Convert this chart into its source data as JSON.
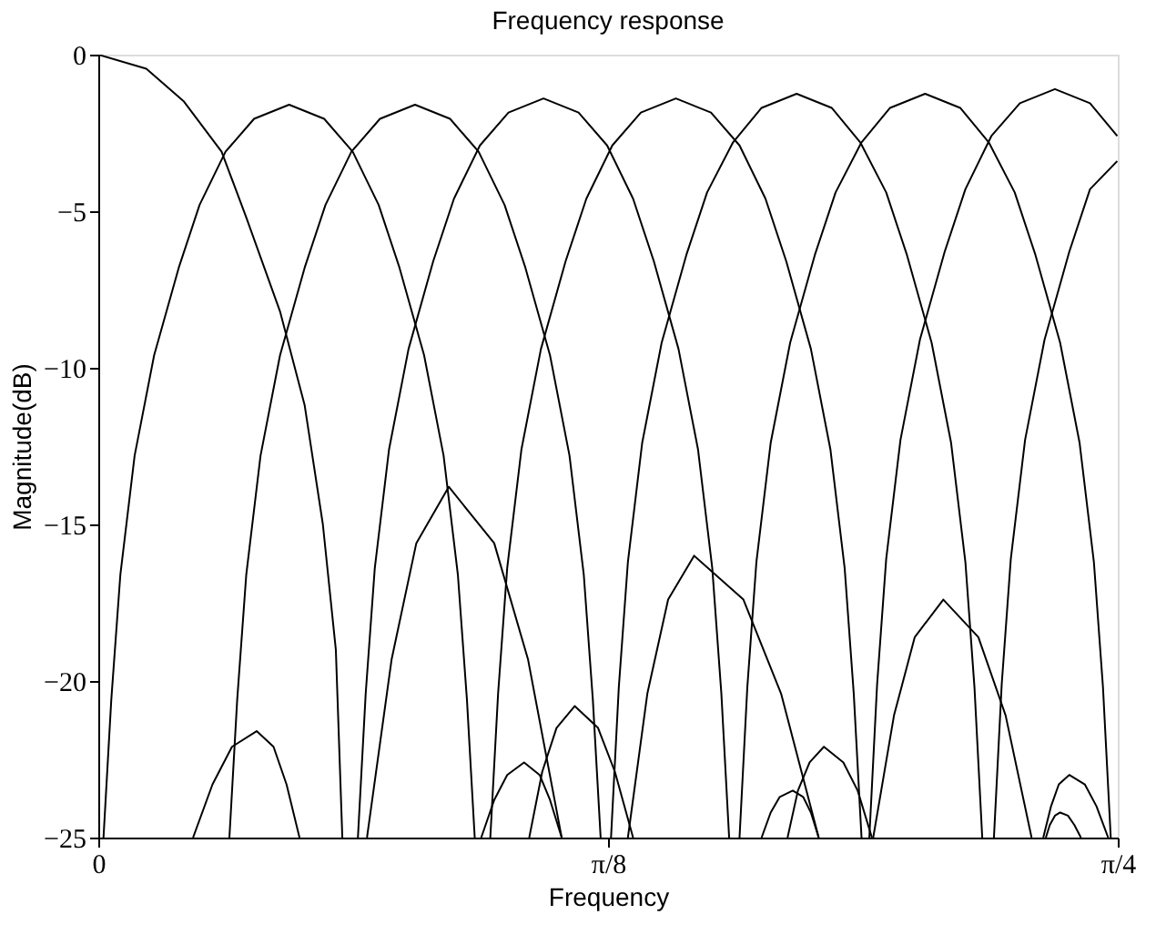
{
  "chart_data": {
    "type": "line",
    "title": "Frequency response",
    "xlabel": "Frequency",
    "ylabel": "Magnitude(dB)",
    "xlim": [
      0,
      0.7854
    ],
    "xticks": [
      {
        "value": 0,
        "label": "0"
      },
      {
        "value": 0.3927,
        "label": "π/8"
      },
      {
        "value": 0.7854,
        "label": "π/4"
      }
    ],
    "ylim": [
      -25,
      0
    ],
    "yticks": [
      0,
      -5,
      -10,
      -15,
      -20,
      -25
    ],
    "grid": false,
    "legend": false,
    "line_style": "solid",
    "marker": "none",
    "series": [
      {
        "color": "#000000",
        "x": [
          0,
          0.037,
          0.066,
          0.095,
          0.114,
          0.14,
          0.159,
          0.173,
          0.183,
          0.188
        ],
        "values": [
          0,
          -0.45,
          -1.5,
          -3.1,
          -5.2,
          -8.2,
          -11.2,
          -15,
          -19,
          -25
        ]
      },
      {
        "color": "#000000",
        "x": [
          0.004,
          0.01,
          0.017,
          0.028,
          0.043,
          0.062,
          0.078,
          0.098,
          0.12,
          0.147,
          0.174,
          0.196,
          0.216,
          0.232,
          0.251,
          0.266,
          0.277,
          0.284,
          0.29
        ],
        "values": [
          -25,
          -20.6,
          -16.6,
          -12.8,
          -9.6,
          -6.8,
          -4.8,
          -3.1,
          -2.05,
          -1.6,
          -2.05,
          -3.1,
          -4.8,
          -6.8,
          -9.6,
          -12.8,
          -16.6,
          -20.6,
          -25
        ]
      },
      {
        "color": "#000000",
        "x": [
          0.101,
          0.107,
          0.114,
          0.125,
          0.14,
          0.159,
          0.175,
          0.195,
          0.217,
          0.244,
          0.271,
          0.293,
          0.313,
          0.329,
          0.348,
          0.363,
          0.374,
          0.381,
          0.387
        ],
        "values": [
          -25,
          -20.6,
          -16.6,
          -12.8,
          -9.6,
          -6.8,
          -4.8,
          -3.1,
          -2.05,
          -1.6,
          -2.05,
          -3.1,
          -4.8,
          -6.8,
          -9.6,
          -12.8,
          -16.6,
          -20.6,
          -25
        ]
      },
      {
        "color": "#000000",
        "x": [
          0.2,
          0.206,
          0.213,
          0.224,
          0.239,
          0.258,
          0.274,
          0.294,
          0.316,
          0.343,
          0.37,
          0.392,
          0.412,
          0.428,
          0.447,
          0.462,
          0.473,
          0.48,
          0.486
        ],
        "values": [
          -25,
          -20.4,
          -16.4,
          -12.6,
          -9.4,
          -6.6,
          -4.6,
          -2.9,
          -1.85,
          -1.4,
          -1.85,
          -2.9,
          -4.6,
          -6.6,
          -9.4,
          -12.6,
          -16.4,
          -20.4,
          -25
        ]
      },
      {
        "color": "#000000",
        "x": [
          0.302,
          0.308,
          0.315,
          0.326,
          0.341,
          0.36,
          0.376,
          0.396,
          0.418,
          0.445,
          0.472,
          0.494,
          0.514,
          0.53,
          0.549,
          0.564,
          0.575,
          0.582,
          0.588
        ],
        "values": [
          -25,
          -20.4,
          -16.4,
          -12.6,
          -9.4,
          -6.6,
          -4.6,
          -2.9,
          -1.85,
          -1.4,
          -1.85,
          -2.9,
          -4.6,
          -6.6,
          -9.4,
          -12.6,
          -16.4,
          -20.4,
          -25
        ]
      },
      {
        "color": "#000000",
        "x": [
          0.395,
          0.401,
          0.408,
          0.419,
          0.434,
          0.453,
          0.469,
          0.489,
          0.511,
          0.538,
          0.565,
          0.587,
          0.607,
          0.623,
          0.642,
          0.657,
          0.668,
          0.675,
          0.681
        ],
        "values": [
          -25,
          -20.2,
          -16.2,
          -12.4,
          -9.2,
          -6.4,
          -4.4,
          -2.8,
          -1.7,
          -1.25,
          -1.7,
          -2.8,
          -4.4,
          -6.4,
          -9.2,
          -12.4,
          -16.2,
          -20.2,
          -25
        ]
      },
      {
        "color": "#000000",
        "x": [
          0.494,
          0.5,
          0.507,
          0.518,
          0.533,
          0.552,
          0.568,
          0.588,
          0.61,
          0.637,
          0.664,
          0.686,
          0.706,
          0.722,
          0.741,
          0.756,
          0.767,
          0.774,
          0.78
        ],
        "values": [
          -25,
          -20.2,
          -16.2,
          -12.4,
          -9.2,
          -6.4,
          -4.4,
          -2.8,
          -1.7,
          -1.25,
          -1.7,
          -2.8,
          -4.4,
          -6.4,
          -9.2,
          -12.4,
          -16.2,
          -20.2,
          -25
        ]
      },
      {
        "color": "#000000",
        "x": [
          0.594,
          0.6,
          0.607,
          0.618,
          0.633,
          0.652,
          0.668,
          0.688,
          0.71,
          0.737,
          0.764,
          0.785
        ],
        "values": [
          -25,
          -20.1,
          -16.1,
          -12.3,
          -9.1,
          -6.3,
          -4.3,
          -2.6,
          -1.55,
          -1.1,
          -1.55,
          -2.6
        ]
      },
      {
        "color": "#000000",
        "x": [
          0.69,
          0.696,
          0.703,
          0.714,
          0.729,
          0.748,
          0.764,
          0.785
        ],
        "values": [
          -25,
          -20.1,
          -16.1,
          -12.3,
          -9.1,
          -6.3,
          -4.3,
          -3.4
        ]
      },
      {
        "color": "#000000",
        "x": [
          0.073,
          0.088,
          0.103,
          0.122,
          0.135,
          0.145,
          0.155
        ],
        "values": [
          -25,
          -23.3,
          -22.1,
          -21.6,
          -22.1,
          -23.3,
          -25
        ]
      },
      {
        "color": "#000000",
        "x": [
          0.207,
          0.226,
          0.245,
          0.27,
          0.305,
          0.331,
          0.357
        ],
        "values": [
          -25,
          -19.3,
          -15.6,
          -13.8,
          -15.6,
          -19.3,
          -25
        ]
      },
      {
        "color": "#000000",
        "x": [
          0.295,
          0.305,
          0.315,
          0.328,
          0.34,
          0.348,
          0.357
        ],
        "values": [
          -25,
          -23.8,
          -23.0,
          -22.6,
          -23.0,
          -23.8,
          -25
        ]
      },
      {
        "color": "#000000",
        "x": [
          0.332,
          0.342,
          0.353,
          0.367,
          0.385,
          0.398,
          0.412
        ],
        "values": [
          -25,
          -22.9,
          -21.5,
          -20.8,
          -21.5,
          -22.9,
          -25
        ]
      },
      {
        "color": "#000000",
        "x": [
          0.408,
          0.423,
          0.439,
          0.459,
          0.497,
          0.526,
          0.555
        ],
        "values": [
          -25,
          -20.4,
          -17.4,
          -16.0,
          -17.4,
          -20.4,
          -25
        ]
      },
      {
        "color": "#000000",
        "x": [
          0.511,
          0.518,
          0.525,
          0.535,
          0.543,
          0.549,
          0.555
        ],
        "values": [
          -25,
          -24.2,
          -23.7,
          -23.5,
          -23.7,
          -24.2,
          -25
        ]
      },
      {
        "color": "#000000",
        "x": [
          0.531,
          0.539,
          0.548,
          0.559,
          0.574,
          0.585,
          0.596
        ],
        "values": [
          -25,
          -23.5,
          -22.6,
          -22.1,
          -22.6,
          -23.5,
          -25
        ]
      },
      {
        "color": "#000000",
        "x": [
          0.597,
          0.613,
          0.629,
          0.651,
          0.678,
          0.699,
          0.719
        ],
        "values": [
          -25,
          -21.1,
          -18.6,
          -17.4,
          -18.6,
          -21.1,
          -25
        ]
      },
      {
        "color": "#000000",
        "x": [
          0.728,
          0.734,
          0.74,
          0.748,
          0.76,
          0.769,
          0.778
        ],
        "values": [
          -25,
          -24.0,
          -23.3,
          -23.0,
          -23.3,
          -24.0,
          -25
        ]
      },
      {
        "color": "#000000",
        "x": [
          0.73,
          0.733,
          0.737,
          0.741,
          0.747,
          0.752,
          0.757
        ],
        "values": [
          -25,
          -24.6,
          -24.3,
          -24.2,
          -24.3,
          -24.6,
          -25
        ]
      }
    ]
  }
}
